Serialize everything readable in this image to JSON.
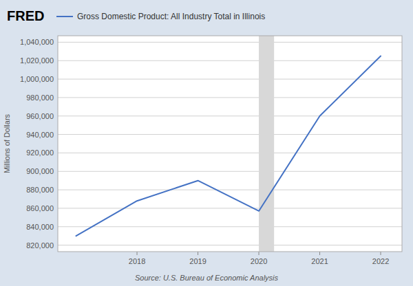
{
  "chart_data": {
    "type": "line",
    "title": "FRED",
    "x": [
      2017,
      2018,
      2019,
      2020,
      2021,
      2022
    ],
    "series": [
      {
        "name": "Gross Domestic Product: All Industry Total in Illinois",
        "color": "#4472c4",
        "values": [
          830000,
          868000,
          890000,
          857000,
          960000,
          1025000
        ]
      }
    ],
    "recession": {
      "start": 2020.0,
      "end": 2020.25
    },
    "xlim": [
      2016.7,
      2022.35
    ],
    "xticks": [
      2018,
      2019,
      2020,
      2021,
      2022
    ],
    "ylim": [
      813000,
      1047000
    ],
    "yticks": [
      {
        "value": 820000,
        "label": "820,000"
      },
      {
        "value": 840000,
        "label": "840,000"
      },
      {
        "value": 860000,
        "label": "860,000"
      },
      {
        "value": 880000,
        "label": "880,000"
      },
      {
        "value": 900000,
        "label": "900,000"
      },
      {
        "value": 920000,
        "label": "920,000"
      },
      {
        "value": 940000,
        "label": "940,000"
      },
      {
        "value": 960000,
        "label": "960,000"
      },
      {
        "value": 980000,
        "label": "980,000"
      },
      {
        "value": 1000000,
        "label": "1,000,000"
      },
      {
        "value": 1020000,
        "label": "1,020,000"
      },
      {
        "value": 1040000,
        "label": "1,040,000"
      }
    ],
    "ylabel": "Millions of Dollars",
    "source": "Source: U.S. Bureau of Economic Analysis",
    "grid": "y",
    "legend": "top-left"
  }
}
